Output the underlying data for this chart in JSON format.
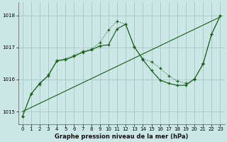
{
  "bg_color": "#cce8e6",
  "grid_color": "#aaccca",
  "line_color": "#1a5c1a",
  "ylim": [
    1014.6,
    1018.4
  ],
  "xlim": [
    -0.5,
    23.5
  ],
  "yticks": [
    1015,
    1016,
    1017,
    1018
  ],
  "xticks": [
    0,
    1,
    2,
    3,
    4,
    5,
    6,
    7,
    8,
    9,
    10,
    11,
    12,
    13,
    14,
    15,
    16,
    17,
    18,
    19,
    20,
    21,
    22,
    23
  ],
  "xlabel": "Graphe pression niveau de la mer (hPa)",
  "line1_x": [
    0,
    23
  ],
  "line1_y": [
    1015.0,
    1017.95
  ],
  "line2_x": [
    0,
    1,
    2,
    3,
    4,
    5,
    6,
    7,
    8,
    9,
    10,
    11,
    12,
    13,
    14,
    15,
    16,
    17,
    18,
    19,
    20,
    21,
    22,
    23
  ],
  "line2_y": [
    1014.85,
    1015.55,
    1015.85,
    1016.15,
    1016.6,
    1016.65,
    1016.75,
    1016.88,
    1016.95,
    1017.15,
    1017.55,
    1017.82,
    1017.72,
    1017.02,
    1016.65,
    1016.55,
    1016.35,
    1016.12,
    1015.95,
    1015.88,
    1016.0,
    1016.5,
    1017.42,
    1017.98
  ],
  "line3_x": [
    0,
    1,
    2,
    3,
    4,
    5,
    6,
    7,
    8,
    9,
    10,
    11,
    12,
    13,
    14,
    15,
    16,
    17,
    18,
    19,
    20,
    21,
    22,
    23
  ],
  "line3_y": [
    1014.85,
    1015.55,
    1015.88,
    1016.12,
    1016.58,
    1016.62,
    1016.72,
    1016.85,
    1016.92,
    1017.05,
    1017.08,
    1017.58,
    1017.72,
    1017.02,
    1016.62,
    1016.28,
    1015.98,
    1015.88,
    1015.82,
    1015.82,
    1016.02,
    1016.48,
    1017.42,
    1017.98
  ]
}
